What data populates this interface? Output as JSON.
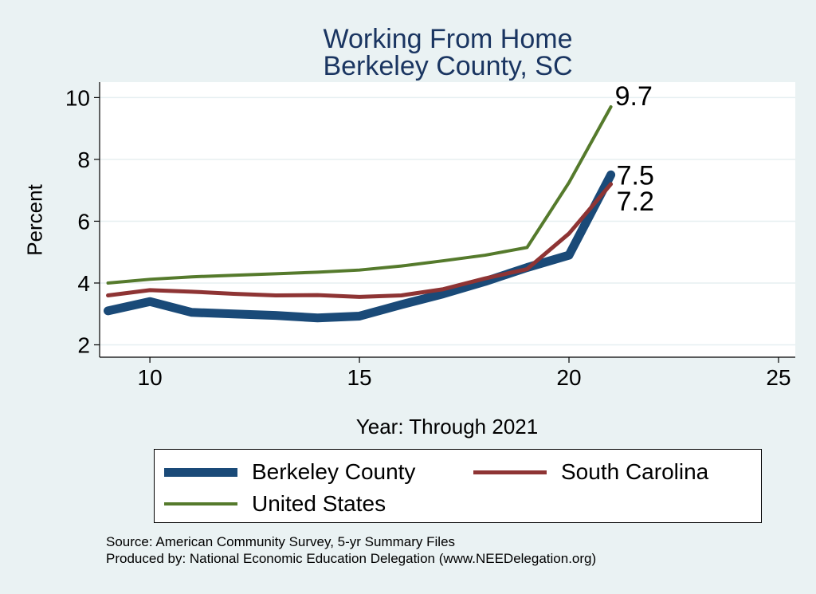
{
  "chart_data": {
    "type": "line",
    "title": [
      "Working From Home",
      "Berkeley County, SC"
    ],
    "xlabel": "Year: Through 2021",
    "ylabel": "Percent",
    "xlim": [
      8.8,
      25.4
    ],
    "ylim": [
      1.6,
      10.5
    ],
    "xticks": [
      10,
      15,
      20,
      25
    ],
    "yticks": [
      2,
      4,
      6,
      8,
      10
    ],
    "grid": true,
    "x": [
      9,
      10,
      11,
      12,
      13,
      14,
      15,
      16,
      17,
      18,
      19,
      20,
      21
    ],
    "series": [
      {
        "name": "Berkeley County",
        "color": "#1a4a78",
        "width": 11,
        "values": [
          3.1,
          3.4,
          3.05,
          3.0,
          2.95,
          2.87,
          2.93,
          3.3,
          3.65,
          4.05,
          4.5,
          4.9,
          7.5
        ],
        "end_label": "7.5"
      },
      {
        "name": "South Carolina",
        "color": "#8e3434",
        "width": 5,
        "values": [
          3.6,
          3.77,
          3.72,
          3.65,
          3.6,
          3.61,
          3.55,
          3.6,
          3.8,
          4.15,
          4.45,
          5.6,
          7.2
        ],
        "end_label": "7.2"
      },
      {
        "name": "United States",
        "color": "#557a2c",
        "width": 4,
        "values": [
          4.0,
          4.12,
          4.2,
          4.25,
          4.3,
          4.35,
          4.42,
          4.55,
          4.72,
          4.9,
          5.15,
          7.25,
          9.7
        ],
        "end_label": "9.7"
      }
    ]
  },
  "source_lines": [
    "Source: American Community Survey, 5-yr Summary Files",
    "Produced by: National Economic Education Delegation (www.NEEDelegation.org)"
  ]
}
